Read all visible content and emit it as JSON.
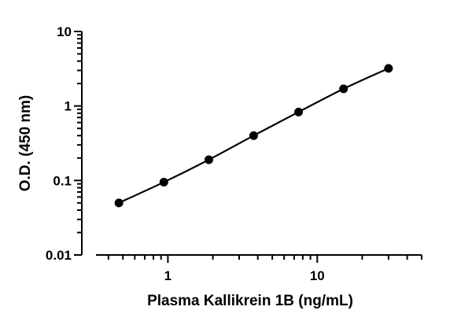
{
  "chart_data": {
    "type": "scatter",
    "title": "",
    "xlabel": "Plasma Kallikrein 1B (ng/mL)",
    "ylabel": "O.D. (450 nm)",
    "x_scale": "log",
    "y_scale": "log",
    "xlim": [
      0.33,
      50
    ],
    "ylim": [
      0.01,
      10
    ],
    "grid": false,
    "legend": "none",
    "x_ticks": [
      1,
      10
    ],
    "x_tick_labels": [
      "1",
      "10"
    ],
    "y_ticks": [
      0.01,
      0.1,
      1,
      10
    ],
    "y_tick_labels": [
      "0.01",
      "0.1",
      "1",
      "10"
    ],
    "series": [
      {
        "x": [
          0.47,
          0.94,
          1.88,
          3.75,
          7.5,
          15,
          30
        ],
        "y": [
          0.05,
          0.095,
          0.19,
          0.4,
          0.83,
          1.7,
          3.2
        ],
        "marker": "circle",
        "fit_line": true,
        "color": "#000000"
      }
    ]
  }
}
